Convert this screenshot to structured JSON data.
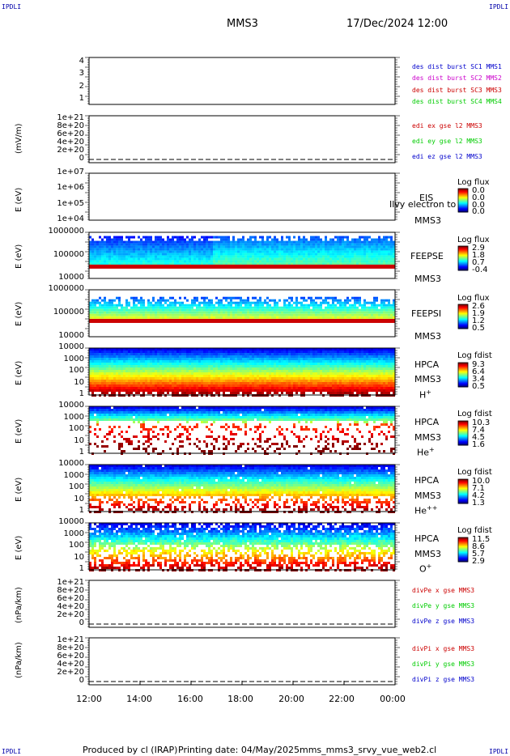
{
  "corner_labels": {
    "tl": "IPDLI",
    "tr": "IPDLI",
    "bl": "IPDLI",
    "br": "IPDLI"
  },
  "header": {
    "spacecraft": "MMS3",
    "datetime": "17/Dec/2024 12:00"
  },
  "footer": {
    "produced_by": "Produced by cl (IRAP)",
    "printing_date": "Printing date: 04/May/2025",
    "script": "mms_mms3_srvy_vue_web2.cl"
  },
  "x_ticks": [
    "12:00",
    "14:00",
    "16:00",
    "18:00",
    "20:00",
    "22:00",
    "00:00"
  ],
  "colors": {
    "red": "#cc0000",
    "magenta": "#cc00cc",
    "green": "#00cc00",
    "blue": "#0000cc",
    "cbar_blue": "#0000ff"
  },
  "panels": {
    "p1": {
      "ylabel": "",
      "ticks": [
        "4",
        "3",
        "2",
        "1"
      ],
      "legend": [
        {
          "text": "des dist burst SC1 MMS1",
          "color": "#0000cc"
        },
        {
          "text": "des dist burst SC2 MMS2",
          "color": "#cc00cc"
        },
        {
          "text": "des dist burst SC3 MMS3",
          "color": "#cc0000"
        },
        {
          "text": "des dist burst SC4 MMS4",
          "color": "#00cc00"
        }
      ]
    },
    "p2": {
      "ylabel": "(mV/m)",
      "ticks": [
        "1e+21",
        "8e+20",
        "6e+20",
        "4e+20",
        "2e+20",
        "0"
      ],
      "legend": [
        {
          "text": "edi ex gse l2 MMS3",
          "color": "#cc0000"
        },
        {
          "text": "edi ey gse l2 MMS3",
          "color": "#00cc00"
        },
        {
          "text": "edi ez gse l2 MMS3",
          "color": "#0000cc"
        }
      ]
    },
    "p3": {
      "ylabel": "E (eV)",
      "ticks": [
        "1e+07",
        "1e+06",
        "1e+05",
        "1e+04"
      ],
      "labels": [
        "EIS",
        "MMS3"
      ],
      "overlay": "Ilvy electron to",
      "cbar_title": "Log flux",
      "cbar_values": [
        "0.0",
        "0.0",
        "0.0",
        "0.0"
      ]
    },
    "p4": {
      "ylabel": "E (eV)",
      "ticks": [
        "1000000",
        "100000",
        "10000"
      ],
      "labels": [
        "FEEPSE",
        "MMS3"
      ],
      "cbar_title": "Log flux",
      "cbar_values": [
        "2.9",
        "1.8",
        "0.7",
        "-0.4"
      ]
    },
    "p5": {
      "ylabel": "E (eV)",
      "ticks": [
        "1000000",
        "100000",
        "10000"
      ],
      "labels": [
        "FEEPSI",
        "MMS3"
      ],
      "cbar_title": "Log flux",
      "cbar_values": [
        "2.6",
        "1.9",
        "1.2",
        "0.5"
      ]
    },
    "p6": {
      "ylabel": "E (eV)",
      "ticks": [
        "10000",
        "1000",
        "100",
        "10",
        "1"
      ],
      "labels": [
        "HPCA",
        "MMS3"
      ],
      "species": "H",
      "species_sup": "+",
      "cbar_title": "Log fdist",
      "cbar_values": [
        "9.3",
        "6.4",
        "3.4",
        "0.5"
      ]
    },
    "p7": {
      "ylabel": "E (eV)",
      "ticks": [
        "10000",
        "1000",
        "100",
        "10",
        "1"
      ],
      "labels": [
        "HPCA",
        "MMS3"
      ],
      "species": "He",
      "species_sup": "+",
      "cbar_title": "Log fdist",
      "cbar_values": [
        "10.3",
        "7.4",
        "4.5",
        "1.6"
      ]
    },
    "p8": {
      "ylabel": "E (eV)",
      "ticks": [
        "10000",
        "1000",
        "100",
        "10",
        "1"
      ],
      "labels": [
        "HPCA",
        "MMS3"
      ],
      "species": "He",
      "species_sup": "++",
      "cbar_title": "Log fdist",
      "cbar_values": [
        "10.0",
        "7.1",
        "4.2",
        "1.3"
      ]
    },
    "p9": {
      "ylabel": "E (eV)",
      "ticks": [
        "10000",
        "1000",
        "100",
        "10",
        "1"
      ],
      "labels": [
        "HPCA",
        "MMS3"
      ],
      "species": "O",
      "species_sup": "+",
      "cbar_title": "Log fdist",
      "cbar_values": [
        "11.5",
        "8.6",
        "5.7",
        "2.9"
      ]
    },
    "p10": {
      "ylabel": "(nPa/km)",
      "ticks": [
        "1e+21",
        "8e+20",
        "6e+20",
        "4e+20",
        "2e+20",
        "0"
      ],
      "legend": [
        {
          "text": "divPe x gse MMS3",
          "color": "#cc0000"
        },
        {
          "text": "divPe y gse MMS3",
          "color": "#00cc00"
        },
        {
          "text": "divPe z gse MMS3",
          "color": "#0000cc"
        }
      ]
    },
    "p11": {
      "ylabel": "(nPa/km)",
      "ticks": [
        "1e+21",
        "8e+20",
        "6e+20",
        "4e+20",
        "2e+20",
        "0"
      ],
      "legend": [
        {
          "text": "divPi x gse MMS3",
          "color": "#cc0000"
        },
        {
          "text": "divPi y gse MMS3",
          "color": "#00cc00"
        },
        {
          "text": "divPi z gse MMS3",
          "color": "#0000cc"
        }
      ]
    }
  },
  "chart_data": {
    "type": "heatmap",
    "x_range": [
      "12:00",
      "00:00"
    ],
    "panels": [
      {
        "id": "p1",
        "type": "line",
        "ylim": [
          0.5,
          4.5
        ],
        "series": []
      },
      {
        "id": "p2",
        "type": "line",
        "ylabel": "(mV/m)",
        "ylim": [
          0,
          1e+21
        ],
        "series": []
      },
      {
        "id": "p3",
        "type": "heatmap",
        "ylabel": "E (eV)",
        "ylim": [
          10000.0,
          10000000.0
        ],
        "log_y": true,
        "z_label": "Log flux"
      },
      {
        "id": "p4",
        "type": "heatmap",
        "ylabel": "E (eV)",
        "ylim": [
          10000.0,
          1000000.0
        ],
        "log_y": true,
        "z_label": "Log flux",
        "z_range": [
          -0.4,
          2.9
        ]
      },
      {
        "id": "p5",
        "type": "heatmap",
        "ylabel": "E (eV)",
        "ylim": [
          10000.0,
          1000000.0
        ],
        "log_y": true,
        "z_label": "Log flux",
        "z_range": [
          0.5,
          2.6
        ]
      },
      {
        "id": "p6",
        "type": "heatmap",
        "ylabel": "E (eV)",
        "ylim": [
          1,
          10000.0
        ],
        "log_y": true,
        "z_label": "Log fdist",
        "z_range": [
          0.5,
          9.3
        ]
      },
      {
        "id": "p7",
        "type": "heatmap",
        "ylabel": "E (eV)",
        "ylim": [
          1,
          10000.0
        ],
        "log_y": true,
        "z_label": "Log fdist",
        "z_range": [
          1.6,
          10.3
        ]
      },
      {
        "id": "p8",
        "type": "heatmap",
        "ylabel": "E (eV)",
        "ylim": [
          1,
          10000.0
        ],
        "log_y": true,
        "z_label": "Log fdist",
        "z_range": [
          1.3,
          10.0
        ]
      },
      {
        "id": "p9",
        "type": "heatmap",
        "ylabel": "E (eV)",
        "ylim": [
          1,
          10000.0
        ],
        "log_y": true,
        "z_label": "Log fdist",
        "z_range": [
          2.9,
          11.5
        ]
      },
      {
        "id": "p10",
        "type": "line",
        "ylabel": "(nPa/km)",
        "ylim": [
          0,
          1e+21
        ],
        "series": []
      },
      {
        "id": "p11",
        "type": "line",
        "ylabel": "(nPa/km)",
        "ylim": [
          0,
          1e+21
        ],
        "series": []
      }
    ]
  }
}
